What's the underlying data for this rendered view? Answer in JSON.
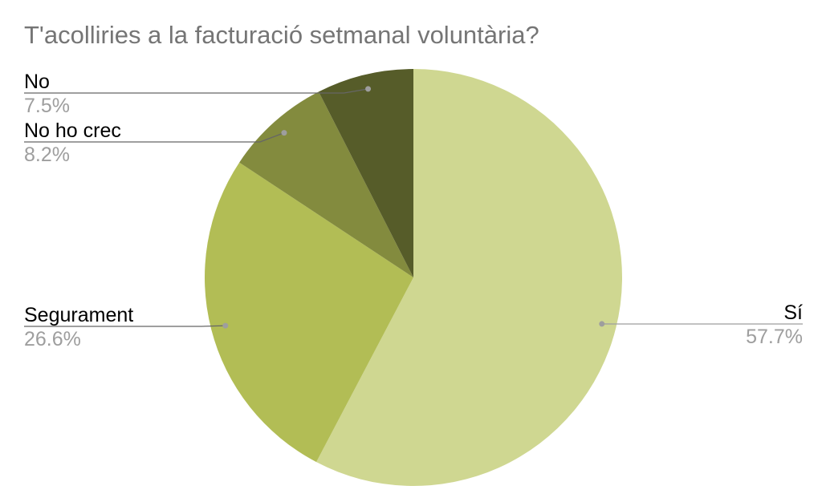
{
  "chart_data": {
    "type": "pie",
    "title": "T'acolliries a la facturació setmanal voluntària?",
    "slices": [
      {
        "label": "Sí",
        "percent_label": "57.7%",
        "value": 57.7,
        "color": "#cfd791"
      },
      {
        "label": "Segurament",
        "percent_label": "26.6%",
        "value": 26.6,
        "color": "#b2bd55"
      },
      {
        "label": "No ho crec",
        "percent_label": "8.2%",
        "value": 8.2,
        "color": "#838b3e"
      },
      {
        "label": "No",
        "percent_label": "7.5%",
        "value": 7.5,
        "color": "#565c29"
      }
    ],
    "start_angle": "12 o'clock",
    "direction": "clockwise",
    "legend": "none",
    "labels": "outside with leader lines"
  }
}
